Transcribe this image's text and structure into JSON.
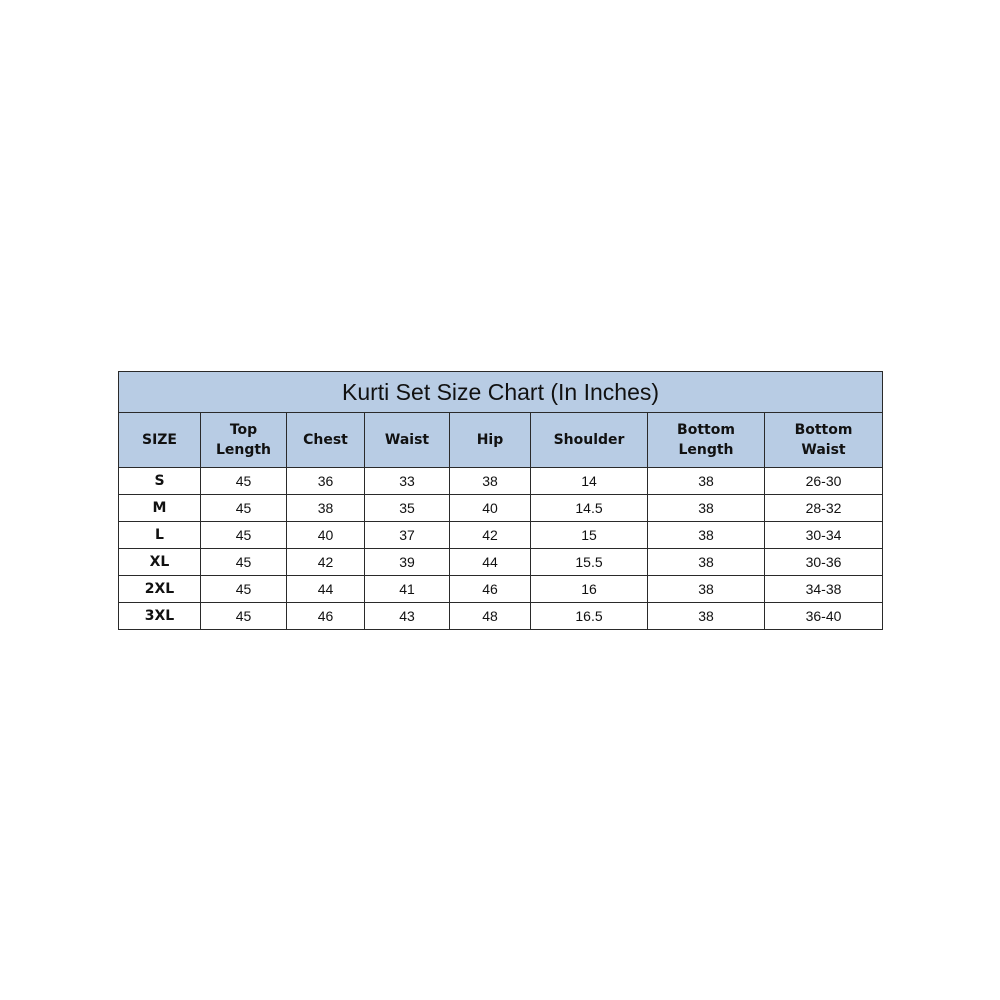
{
  "title": "Kurti Set Size Chart (In Inches)",
  "colors": {
    "header_bg": "#b8cce4",
    "border": "#2a2a2a"
  },
  "columns": [
    "SIZE",
    "Top Length",
    "Chest",
    "Waist",
    "Hip",
    "Shoulder",
    "Bottom Length",
    "Bottom Waist"
  ],
  "rows": [
    [
      "S",
      "45",
      "36",
      "33",
      "38",
      "14",
      "38",
      "26-30"
    ],
    [
      "M",
      "45",
      "38",
      "35",
      "40",
      "14.5",
      "38",
      "28-32"
    ],
    [
      "L",
      "45",
      "40",
      "37",
      "42",
      "15",
      "38",
      "30-34"
    ],
    [
      "XL",
      "45",
      "42",
      "39",
      "44",
      "15.5",
      "38",
      "30-36"
    ],
    [
      "2XL",
      "45",
      "44",
      "41",
      "46",
      "16",
      "38",
      "34-38"
    ],
    [
      "3XL",
      "45",
      "46",
      "43",
      "48",
      "16.5",
      "38",
      "36-40"
    ]
  ]
}
